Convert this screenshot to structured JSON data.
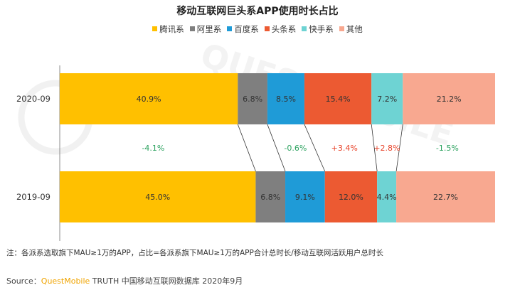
{
  "title": "移动互联网巨头系APP使用时长占比",
  "footer": {
    "note": "注：各派系选取旗下MAU≥1万的APP，占比=各派系旗下MAU≥1万的APP合计总时长/移动互联网活跃用户总时长",
    "source_prefix": "Source：",
    "source_brand": "QuestMobile",
    "source_rest": " TRUTH 中国移动互联网数据库 2020年9月"
  },
  "watermark": "QUESTMOBILE",
  "chart_data": {
    "type": "bar",
    "orientation": "horizontal",
    "stacked": true,
    "percent": true,
    "title": "移动互联网巨头系APP使用时长占比",
    "legend_position": "top",
    "categories": [
      "2020-09",
      "2019-09"
    ],
    "series": [
      {
        "name": "腾讯系",
        "values": [
          40.9,
          45.0
        ],
        "labels": [
          "40.9%",
          "45.0%"
        ],
        "color": "#ffc000"
      },
      {
        "name": "阿里系",
        "values": [
          6.8,
          6.8
        ],
        "labels": [
          "6.8%",
          "6.8%"
        ],
        "color": "#7f7f7f"
      },
      {
        "name": "百度系",
        "values": [
          8.5,
          9.1
        ],
        "labels": [
          "8.5%",
          "9.1%"
        ],
        "color": "#1f9bd7"
      },
      {
        "name": "头条系",
        "values": [
          15.4,
          12.0
        ],
        "labels": [
          "15.4%",
          "12.0%"
        ],
        "color": "#ec5a32"
      },
      {
        "name": "快手系",
        "values": [
          7.2,
          4.4
        ],
        "labels": [
          "7.2%",
          "4.4%"
        ],
        "color": "#6ed3d3"
      },
      {
        "name": "其他",
        "values": [
          21.2,
          22.7
        ],
        "labels": [
          "21.2%",
          "22.7%"
        ],
        "color": "#f8a890"
      }
    ],
    "changes": [
      {
        "series": "腾讯系",
        "label": "-4.1%",
        "color": "#2ca25f"
      },
      {
        "series": "阿里系",
        "label": "",
        "color": "#2ca25f"
      },
      {
        "series": "百度系",
        "label": "-0.6%",
        "color": "#2ca25f"
      },
      {
        "series": "头条系",
        "label": "+3.4%",
        "color": "#e8432a"
      },
      {
        "series": "快手系",
        "label": "+2.8%",
        "color": "#e8432a"
      },
      {
        "series": "其他",
        "label": "-1.5%",
        "color": "#2ca25f"
      }
    ]
  }
}
